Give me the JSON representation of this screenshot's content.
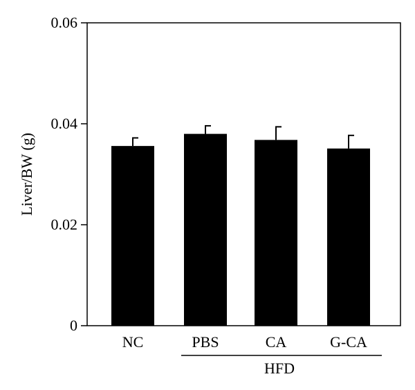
{
  "chart_data": {
    "type": "bar",
    "title": "",
    "xlabel": "",
    "ylabel": "Liver/BW (g)",
    "categories": [
      "NC",
      "PBS",
      "CA",
      "G-CA"
    ],
    "values": [
      0.0356,
      0.038,
      0.0368,
      0.0351
    ],
    "errors": [
      0.0016,
      0.0016,
      0.0026,
      0.0026
    ],
    "ylim": [
      0,
      0.06
    ],
    "yticks": [
      "0",
      "0.02",
      "0.04",
      "0.06"
    ],
    "ytick_values": [
      0,
      0.02,
      0.04,
      0.06
    ],
    "group_label": {
      "text": "HFD",
      "categories": [
        "PBS",
        "CA",
        "G-CA"
      ]
    },
    "grid": false,
    "legend": "none",
    "bar_color": "#000000"
  }
}
